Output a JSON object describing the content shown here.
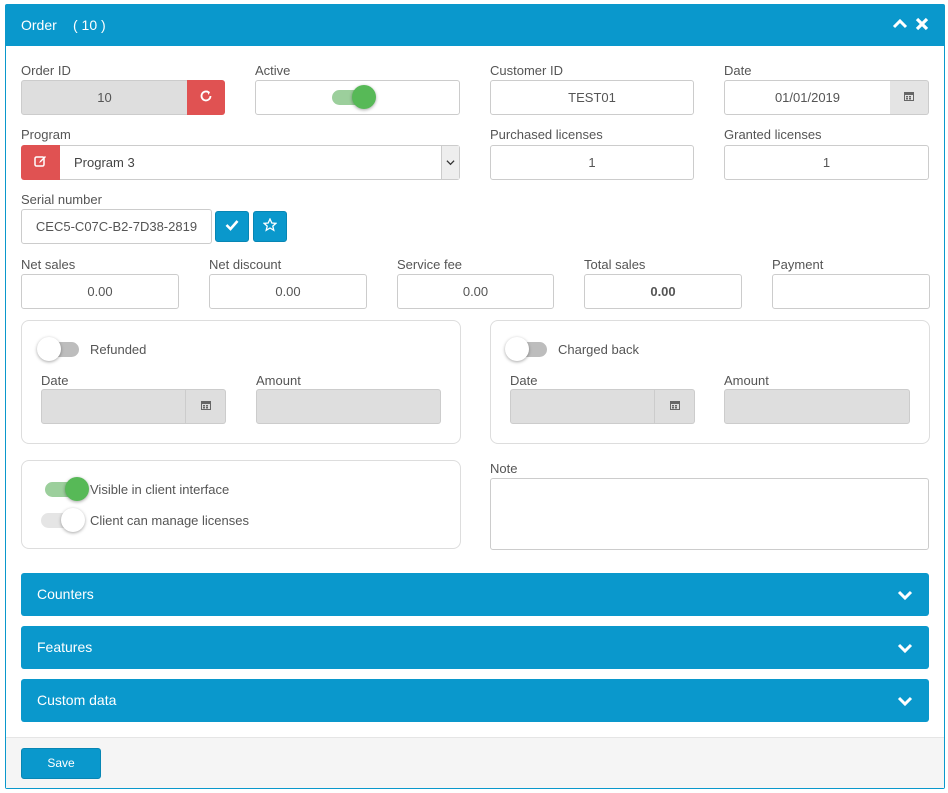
{
  "header": {
    "title": "Order",
    "count": "( 10 )",
    "collapse_icon": "chevron-up-icon",
    "close_icon": "close-icon"
  },
  "fields": {
    "order_id": {
      "label": "Order ID",
      "value": "10",
      "refresh_icon": "refresh-icon"
    },
    "active": {
      "label": "Active",
      "state": "on"
    },
    "customer_id": {
      "label": "Customer ID",
      "value": "TEST01"
    },
    "date": {
      "label": "Date",
      "value": "01/01/2019",
      "icon": "calendar-icon"
    },
    "program": {
      "label": "Program",
      "value": "Program 3",
      "options": [
        "Program 3"
      ],
      "edit_icon": "edit-icon"
    },
    "purchased_licenses": {
      "label": "Purchased licenses",
      "value": "1"
    },
    "granted_licenses": {
      "label": "Granted licenses",
      "value": "1"
    },
    "serial_number": {
      "label": "Serial number",
      "value": "CEC5-C07C-B2-7D38-2819",
      "check_icon": "check-icon",
      "star_icon": "star-icon"
    },
    "net_sales": {
      "label": "Net sales",
      "value": "0.00"
    },
    "net_discount": {
      "label": "Net discount",
      "value": "0.00"
    },
    "service_fee": {
      "label": "Service fee",
      "value": "0.00"
    },
    "total_sales": {
      "label": "Total sales",
      "value": "0.00"
    },
    "payment": {
      "label": "Payment",
      "value": ""
    }
  },
  "refunded": {
    "toggle_label": "Refunded",
    "date_label": "Date",
    "amount_label": "Amount",
    "date_value": "",
    "amount_value": ""
  },
  "charged_back": {
    "toggle_label": "Charged back",
    "date_label": "Date",
    "amount_label": "Amount",
    "date_value": "",
    "amount_value": ""
  },
  "options": {
    "visible_label": "Visible in client interface",
    "manage_label": "Client can manage licenses"
  },
  "note": {
    "label": "Note",
    "value": ""
  },
  "sections": [
    {
      "label": "Counters"
    },
    {
      "label": "Features"
    },
    {
      "label": "Custom data"
    }
  ],
  "footer": {
    "save_label": "Save"
  },
  "colors": {
    "primary": "#0a98cc",
    "danger": "#e05252",
    "toggle_on": "#57b957"
  }
}
